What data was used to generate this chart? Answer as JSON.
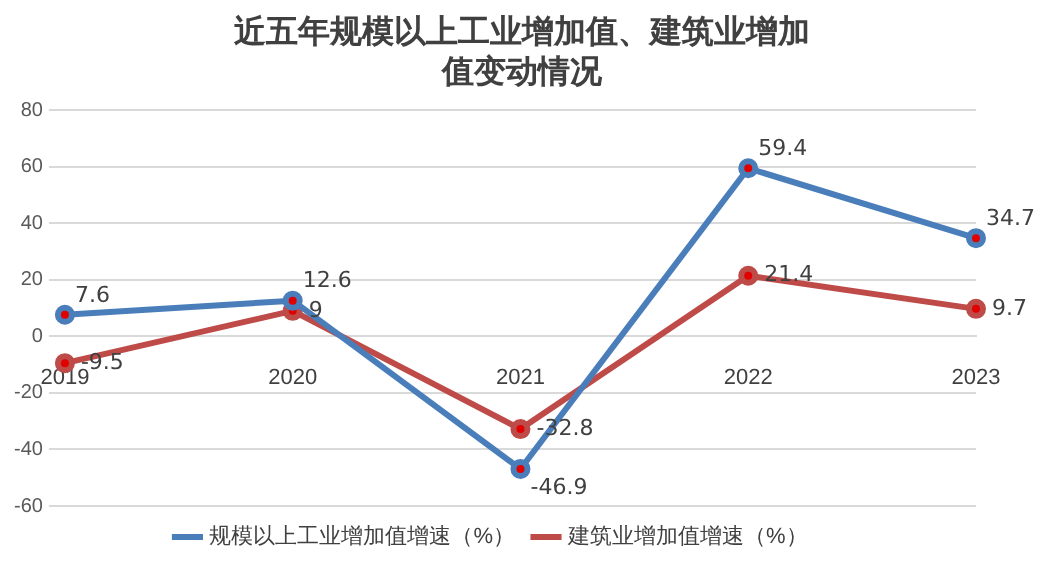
{
  "chart_data": {
    "type": "line",
    "title": "近五年规模以上工业增加值、建筑业增加值变动情况",
    "categories": [
      "2019",
      "2020",
      "2021",
      "2022",
      "2023"
    ],
    "series": [
      {
        "name": "规模以上工业增加值增速（%）",
        "color": "#4a7ebb",
        "values": [
          7.6,
          12.6,
          -46.9,
          59.4,
          34.7
        ]
      },
      {
        "name": "建筑业增加值增速（%）",
        "color": "#be4b48",
        "values": [
          -9.5,
          9,
          -32.8,
          21.4,
          9.7
        ]
      }
    ],
    "ylim": [
      -60,
      80
    ],
    "yticks": [
      -60,
      -40,
      -20,
      0,
      20,
      40,
      60,
      80
    ],
    "grid": "y",
    "legend": "bottom",
    "marker": "circle",
    "line_style": "solid",
    "data_labels": true
  }
}
